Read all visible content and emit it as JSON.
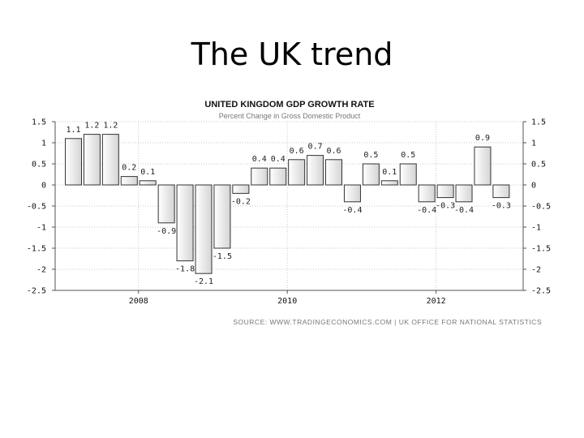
{
  "slide": {
    "title": "The UK trend"
  },
  "chart_data": {
    "type": "bar",
    "title": "UNITED KINGDOM GDP GROWTH RATE",
    "subtitle": "Percent Change in Gross Domestic Product",
    "source": "SOURCE: WWW.TRADINGECONOMICS.COM | UK OFFICE FOR NATIONAL STATISTICS",
    "values": [
      1.1,
      1.2,
      1.2,
      0.2,
      0.1,
      -0.9,
      -1.8,
      -2.1,
      -1.5,
      -0.2,
      0.4,
      0.4,
      0.6,
      0.7,
      0.6,
      -0.4,
      0.5,
      0.1,
      0.5,
      -0.4,
      -0.3,
      -0.4,
      0.9,
      -0.3
    ],
    "value_labels": [
      "1.1",
      "1.2",
      "1.2",
      "0.2",
      "0.1",
      "-0.9",
      "-1.8",
      "-2.1",
      "-1.5",
      "-0.2",
      "0.4",
      "0.4",
      "0.6",
      "0.7",
      "0.6",
      "-0.4",
      "0.5",
      "0.1",
      "0.5",
      "-0.4",
      "-0.3",
      "-0.4",
      "0.9",
      "-0.3"
    ],
    "ylim": [
      -2.5,
      1.5
    ],
    "yticks": [
      1.5,
      1,
      0.5,
      0,
      -0.5,
      -1,
      -1.5,
      -2,
      -2.5
    ],
    "ytick_labels": [
      "1.5",
      "1",
      "0.5",
      "0",
      "-0.5",
      "-1",
      "-1.5",
      "-2",
      "-2.5"
    ],
    "xticks": [
      {
        "label": "2008",
        "after_bar": 3
      },
      {
        "label": "2010",
        "after_bar": 11
      },
      {
        "label": "2012",
        "after_bar": 19
      }
    ],
    "grid": true,
    "colors": {
      "bar_fill_top": "#ffffff",
      "bar_fill_bottom": "#d8d8d8",
      "bar_stroke": "#333333",
      "grid": "#c8c8c8"
    }
  }
}
